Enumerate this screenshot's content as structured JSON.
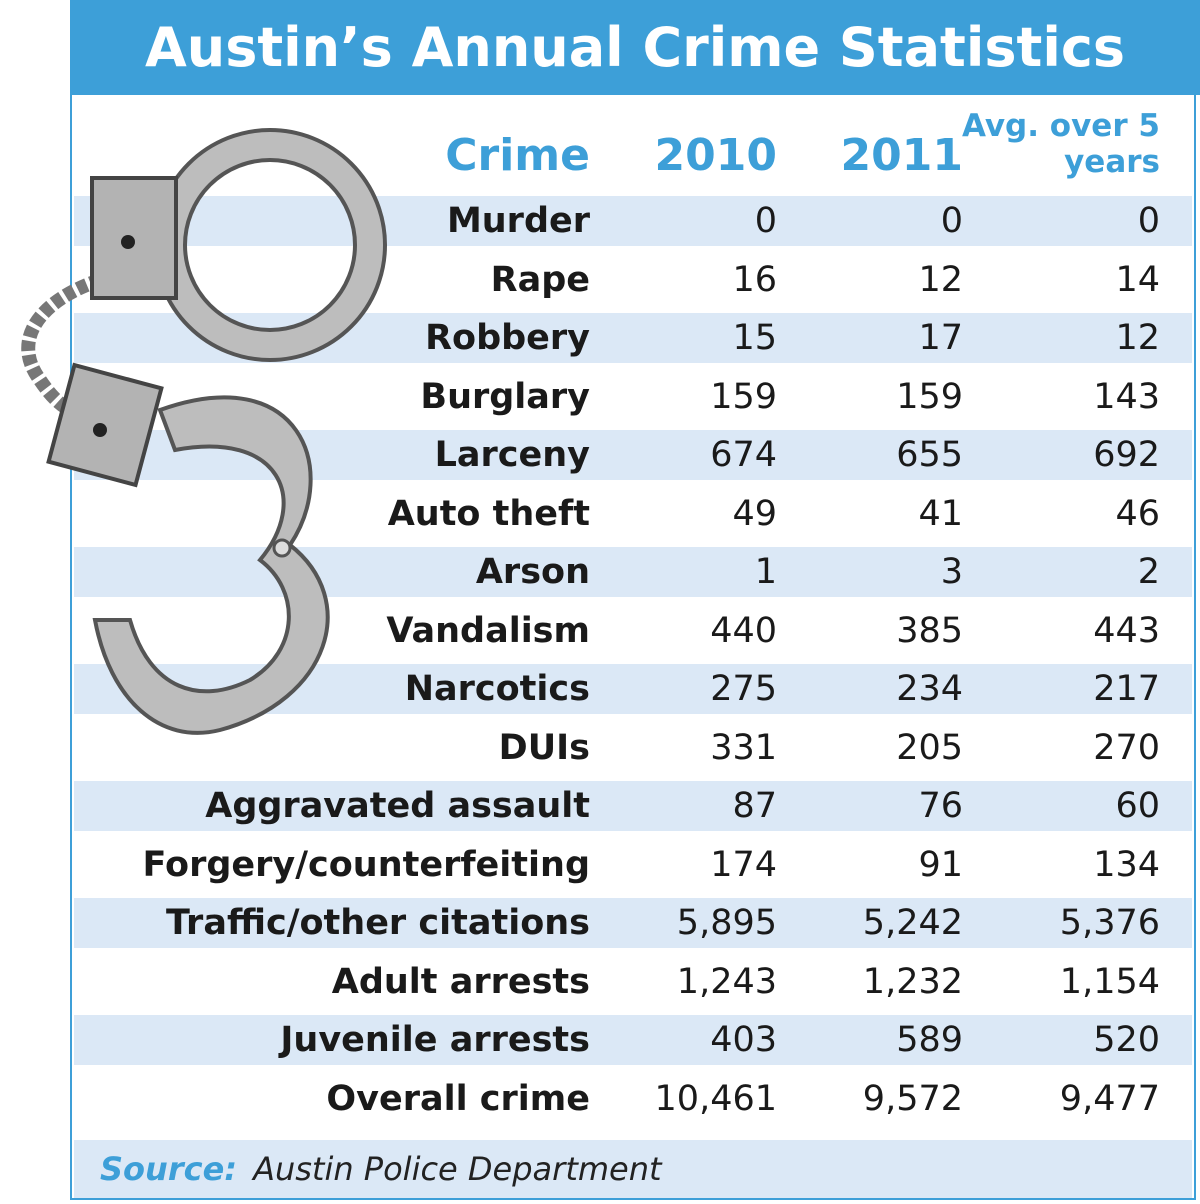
{
  "title": "Austin’s Annual Crime Statistics",
  "table": {
    "headers": [
      "Crime",
      "2010",
      "2011",
      "Avg. over 5 years"
    ],
    "rows": [
      [
        "Murder",
        "0",
        "0",
        "0"
      ],
      [
        "Rape",
        "16",
        "12",
        "14"
      ],
      [
        "Robbery",
        "15",
        "17",
        "12"
      ],
      [
        "Burglary",
        "159",
        "159",
        "143"
      ],
      [
        "Larceny",
        "674",
        "655",
        "692"
      ],
      [
        "Auto theft",
        "49",
        "41",
        "46"
      ],
      [
        "Arson",
        "1",
        "3",
        "2"
      ],
      [
        "Vandalism",
        "440",
        "385",
        "443"
      ],
      [
        "Narcotics",
        "275",
        "234",
        "217"
      ],
      [
        "DUIs",
        "331",
        "205",
        "270"
      ],
      [
        "Aggravated assault",
        "87",
        "76",
        "60"
      ],
      [
        "Forgery/counterfeiting",
        "174",
        "91",
        "134"
      ],
      [
        "Traffic/other citations",
        "5,895",
        "5,242",
        "5,376"
      ],
      [
        "Adult arrests",
        "1,243",
        "1,232",
        "1,154"
      ],
      [
        "Juvenile arrests",
        "403",
        "589",
        "520"
      ],
      [
        "Overall crime",
        "10,461",
        "9,572",
        "9,477"
      ]
    ]
  },
  "source": {
    "label": "Source:",
    "text": "Austin Police Department"
  }
}
